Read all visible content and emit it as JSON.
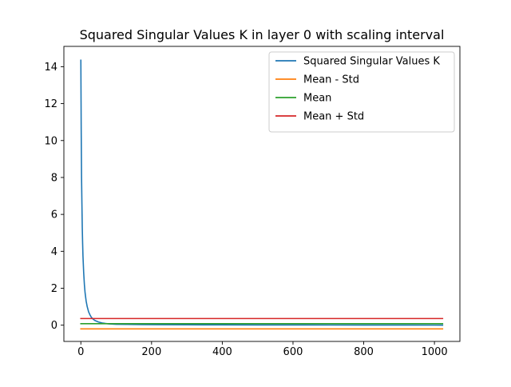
{
  "chart_data": {
    "type": "line",
    "title": "Squared Singular Values K in layer 0 with scaling interval",
    "xlabel": "",
    "ylabel": "",
    "xlim": [
      -48,
      1072
    ],
    "ylim": [
      -0.88,
      15.1
    ],
    "xticks": [
      0,
      200,
      400,
      600,
      800,
      1000
    ],
    "yticks": [
      0,
      2,
      4,
      6,
      8,
      10,
      12,
      14
    ],
    "grid": false,
    "legend_position": "upper right",
    "series": [
      {
        "name": "Squared Singular Values K",
        "color": "#1f77b4",
        "x": [
          0,
          1,
          2,
          3,
          4,
          5,
          6,
          8,
          10,
          12,
          15,
          18,
          22,
          26,
          30,
          35,
          40,
          50,
          60,
          70,
          80,
          100,
          130,
          170,
          220,
          300,
          400,
          500,
          600,
          700,
          800,
          900,
          1000,
          1023
        ],
        "y": [
          14.35,
          10.6,
          8.0,
          6.6,
          5.3,
          4.45,
          3.75,
          2.85,
          2.2,
          1.75,
          1.3,
          1.0,
          0.72,
          0.55,
          0.42,
          0.32,
          0.25,
          0.17,
          0.12,
          0.09,
          0.07,
          0.05,
          0.04,
          0.03,
          0.025,
          0.02,
          0.015,
          0.012,
          0.01,
          0.008,
          0.006,
          0.004,
          0.002,
          0.0
        ]
      },
      {
        "name": "Mean - Std",
        "color": "#ff7f0e",
        "x": [
          0,
          1023
        ],
        "y": [
          -0.2,
          -0.2
        ]
      },
      {
        "name": "Mean",
        "color": "#2ca02c",
        "x": [
          0,
          1023
        ],
        "y": [
          0.08,
          0.08
        ]
      },
      {
        "name": "Mean + Std",
        "color": "#d62728",
        "x": [
          0,
          1023
        ],
        "y": [
          0.36,
          0.36
        ]
      }
    ]
  }
}
